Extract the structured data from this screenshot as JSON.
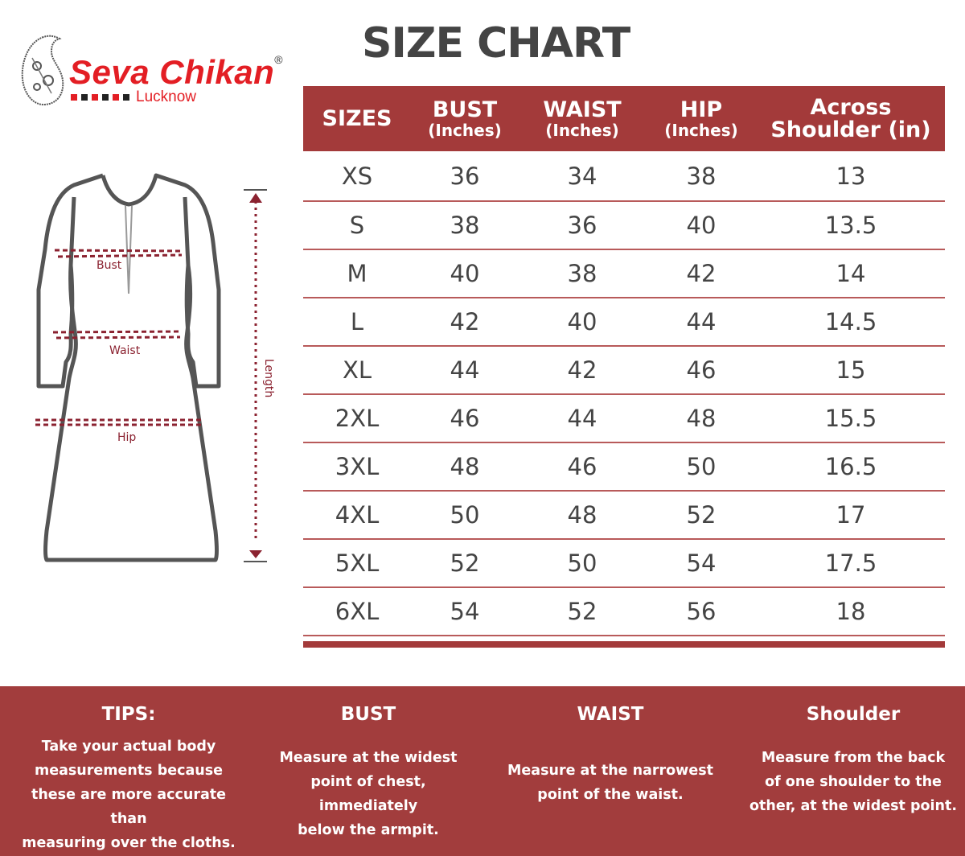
{
  "brand": {
    "name": "Seva Chikan",
    "registered": "®",
    "city": "Lucknow",
    "color": "#e31e24"
  },
  "title": "SIZE CHART",
  "diagram": {
    "labels": {
      "bust": "Bust",
      "waist": "Waist",
      "hip": "Hip",
      "length": "Length"
    }
  },
  "table": {
    "header_color": "#a33a3a",
    "columns": [
      {
        "main": "SIZES",
        "sub": ""
      },
      {
        "main": "BUST",
        "sub": "(Inches)"
      },
      {
        "main": "WAIST",
        "sub": "(Inches)"
      },
      {
        "main": "HIP",
        "sub": "(Inches)"
      },
      {
        "main": "Across",
        "sub": "Shoulder (in)"
      }
    ],
    "rows": [
      [
        "XS",
        "36",
        "34",
        "38",
        "13"
      ],
      [
        "S",
        "38",
        "36",
        "40",
        "13.5"
      ],
      [
        "M",
        "40",
        "38",
        "42",
        "14"
      ],
      [
        "L",
        "42",
        "40",
        "44",
        "14.5"
      ],
      [
        "XL",
        "44",
        "42",
        "46",
        "15"
      ],
      [
        "2XL",
        "46",
        "44",
        "48",
        "15.5"
      ],
      [
        "3XL",
        "48",
        "46",
        "50",
        "16.5"
      ],
      [
        "4XL",
        "50",
        "48",
        "52",
        "17"
      ],
      [
        "5XL",
        "52",
        "50",
        "54",
        "17.5"
      ],
      [
        "6XL",
        "54",
        "52",
        "56",
        "18"
      ]
    ]
  },
  "tips": [
    {
      "title": "TIPS:",
      "lines": [
        "Take your actual body",
        "measurements because",
        "these are more accurate than",
        "measuring over the cloths."
      ]
    },
    {
      "title": "BUST",
      "lines": [
        "Measure at the widest",
        "point of chest, immediately",
        "below the armpit."
      ]
    },
    {
      "title": "WAIST",
      "lines": [
        "Measure at the narrowest",
        "point of the waist."
      ]
    },
    {
      "title": "Shoulder",
      "lines": [
        "Measure from the back",
        "of one shoulder to the",
        "other, at the widest point."
      ]
    }
  ]
}
